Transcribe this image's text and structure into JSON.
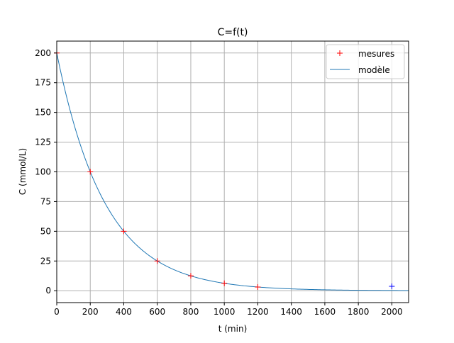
{
  "chart_data": {
    "type": "scatter",
    "title": "C=f(t)",
    "xlabel": "t (min)",
    "ylabel": "C (mmol/L)",
    "xlim": [
      0,
      2100
    ],
    "ylim": [
      -10,
      210
    ],
    "xticks": [
      0,
      200,
      400,
      600,
      800,
      1000,
      1200,
      1400,
      1600,
      1800,
      2000
    ],
    "yticks": [
      0,
      25,
      50,
      75,
      100,
      125,
      150,
      175,
      200
    ],
    "grid": true,
    "legend_position": "top-right",
    "colors": {
      "measures": "#ff0000",
      "model": "#1f77b4",
      "extra": "#0000ff",
      "grid": "#b0b0b0"
    },
    "series": [
      {
        "name": "mesures",
        "marker": "+",
        "x": [
          0,
          200,
          400,
          600,
          800,
          1000,
          1200
        ],
        "y": [
          200,
          100,
          50,
          25,
          12.5,
          6.25,
          3.1
        ]
      },
      {
        "name": "modèle",
        "kind": "line",
        "model": {
          "C0": 200,
          "half_life": 200
        }
      },
      {
        "marker": "+",
        "x": [
          2000
        ],
        "y": [
          3.7
        ]
      }
    ]
  }
}
